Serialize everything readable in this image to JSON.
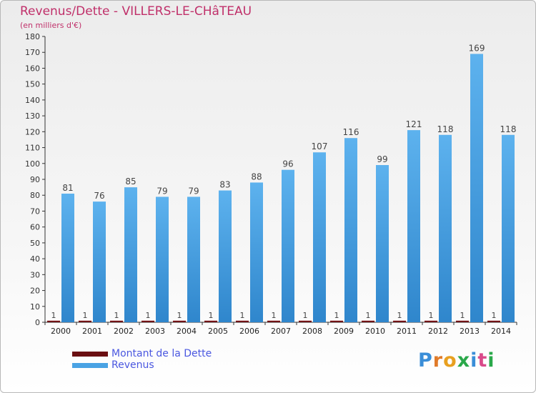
{
  "chart_data": {
    "type": "bar",
    "title": "Revenus/Dette - VILLERS-LE-CHâTEAU",
    "subtitle": "(en milliers d'€)",
    "categories": [
      "2000",
      "2001",
      "2002",
      "2003",
      "2004",
      "2005",
      "2006",
      "2007",
      "2008",
      "2009",
      "2010",
      "2011",
      "2012",
      "2013",
      "2014"
    ],
    "series": [
      {
        "name": "Montant de la Dette",
        "color": "#6b0f12",
        "values": [
          1,
          1,
          1,
          1,
          1,
          1,
          1,
          1,
          1,
          1,
          1,
          1,
          1,
          1,
          1
        ]
      },
      {
        "name": "Revenus",
        "color": "#4aa3e4",
        "values": [
          81,
          76,
          85,
          79,
          79,
          83,
          88,
          96,
          107,
          116,
          99,
          121,
          118,
          169,
          118
        ]
      }
    ],
    "ylim": [
      0,
      180
    ],
    "yticks": [
      0,
      10,
      20,
      30,
      40,
      50,
      60,
      70,
      80,
      90,
      100,
      110,
      120,
      130,
      140,
      150,
      160,
      170,
      180
    ],
    "xlabel": "",
    "ylabel": "",
    "grid": false,
    "legend_position": "bottom-left"
  },
  "legend": {
    "items": [
      {
        "label": "Montant de la Dette",
        "color": "#6b0f12"
      },
      {
        "label": "Revenus",
        "color": "#4aa3e4"
      }
    ]
  },
  "logo": {
    "text": "Proxiti",
    "letters": [
      "P",
      "r",
      "o",
      "x",
      "i",
      "t",
      "i"
    ]
  }
}
